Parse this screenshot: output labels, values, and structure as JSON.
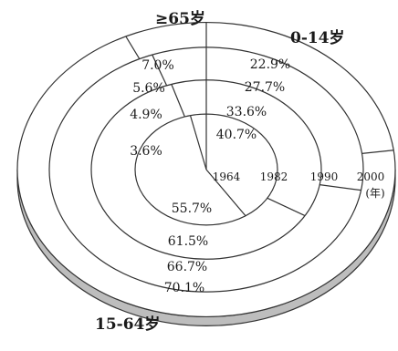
{
  "chart_data": {
    "type": "pie",
    "categories": [
      "0-14岁",
      "15-64岁",
      "≥65岁"
    ],
    "category_labels": {
      "young": "0-14岁",
      "working": "15-64岁",
      "elderly": "≥65岁"
    },
    "year_unit": "(年)",
    "rings": [
      {
        "year": "1964",
        "young": 40.7,
        "working": 55.7,
        "elderly": 3.6,
        "labels": {
          "young": "40.7%",
          "working": "55.7%",
          "elderly": "3.6%"
        }
      },
      {
        "year": "1982",
        "young": 33.6,
        "working": 61.5,
        "elderly": 4.9,
        "labels": {
          "young": "33.6%",
          "working": "61.5%",
          "elderly": "4.9%"
        }
      },
      {
        "year": "1990",
        "young": 27.7,
        "working": 66.7,
        "elderly": 5.6,
        "labels": {
          "young": "27.7%",
          "working": "66.7%",
          "elderly": "5.6%"
        }
      },
      {
        "year": "2000",
        "young": 22.9,
        "working": 70.1,
        "elderly": 7.0,
        "labels": {
          "young": "22.9%",
          "working": "70.1%",
          "elderly": "7.0%"
        }
      }
    ],
    "colors": {
      "fill": "#ffffff",
      "line": "#333333",
      "side": "#bdbdbd"
    }
  }
}
